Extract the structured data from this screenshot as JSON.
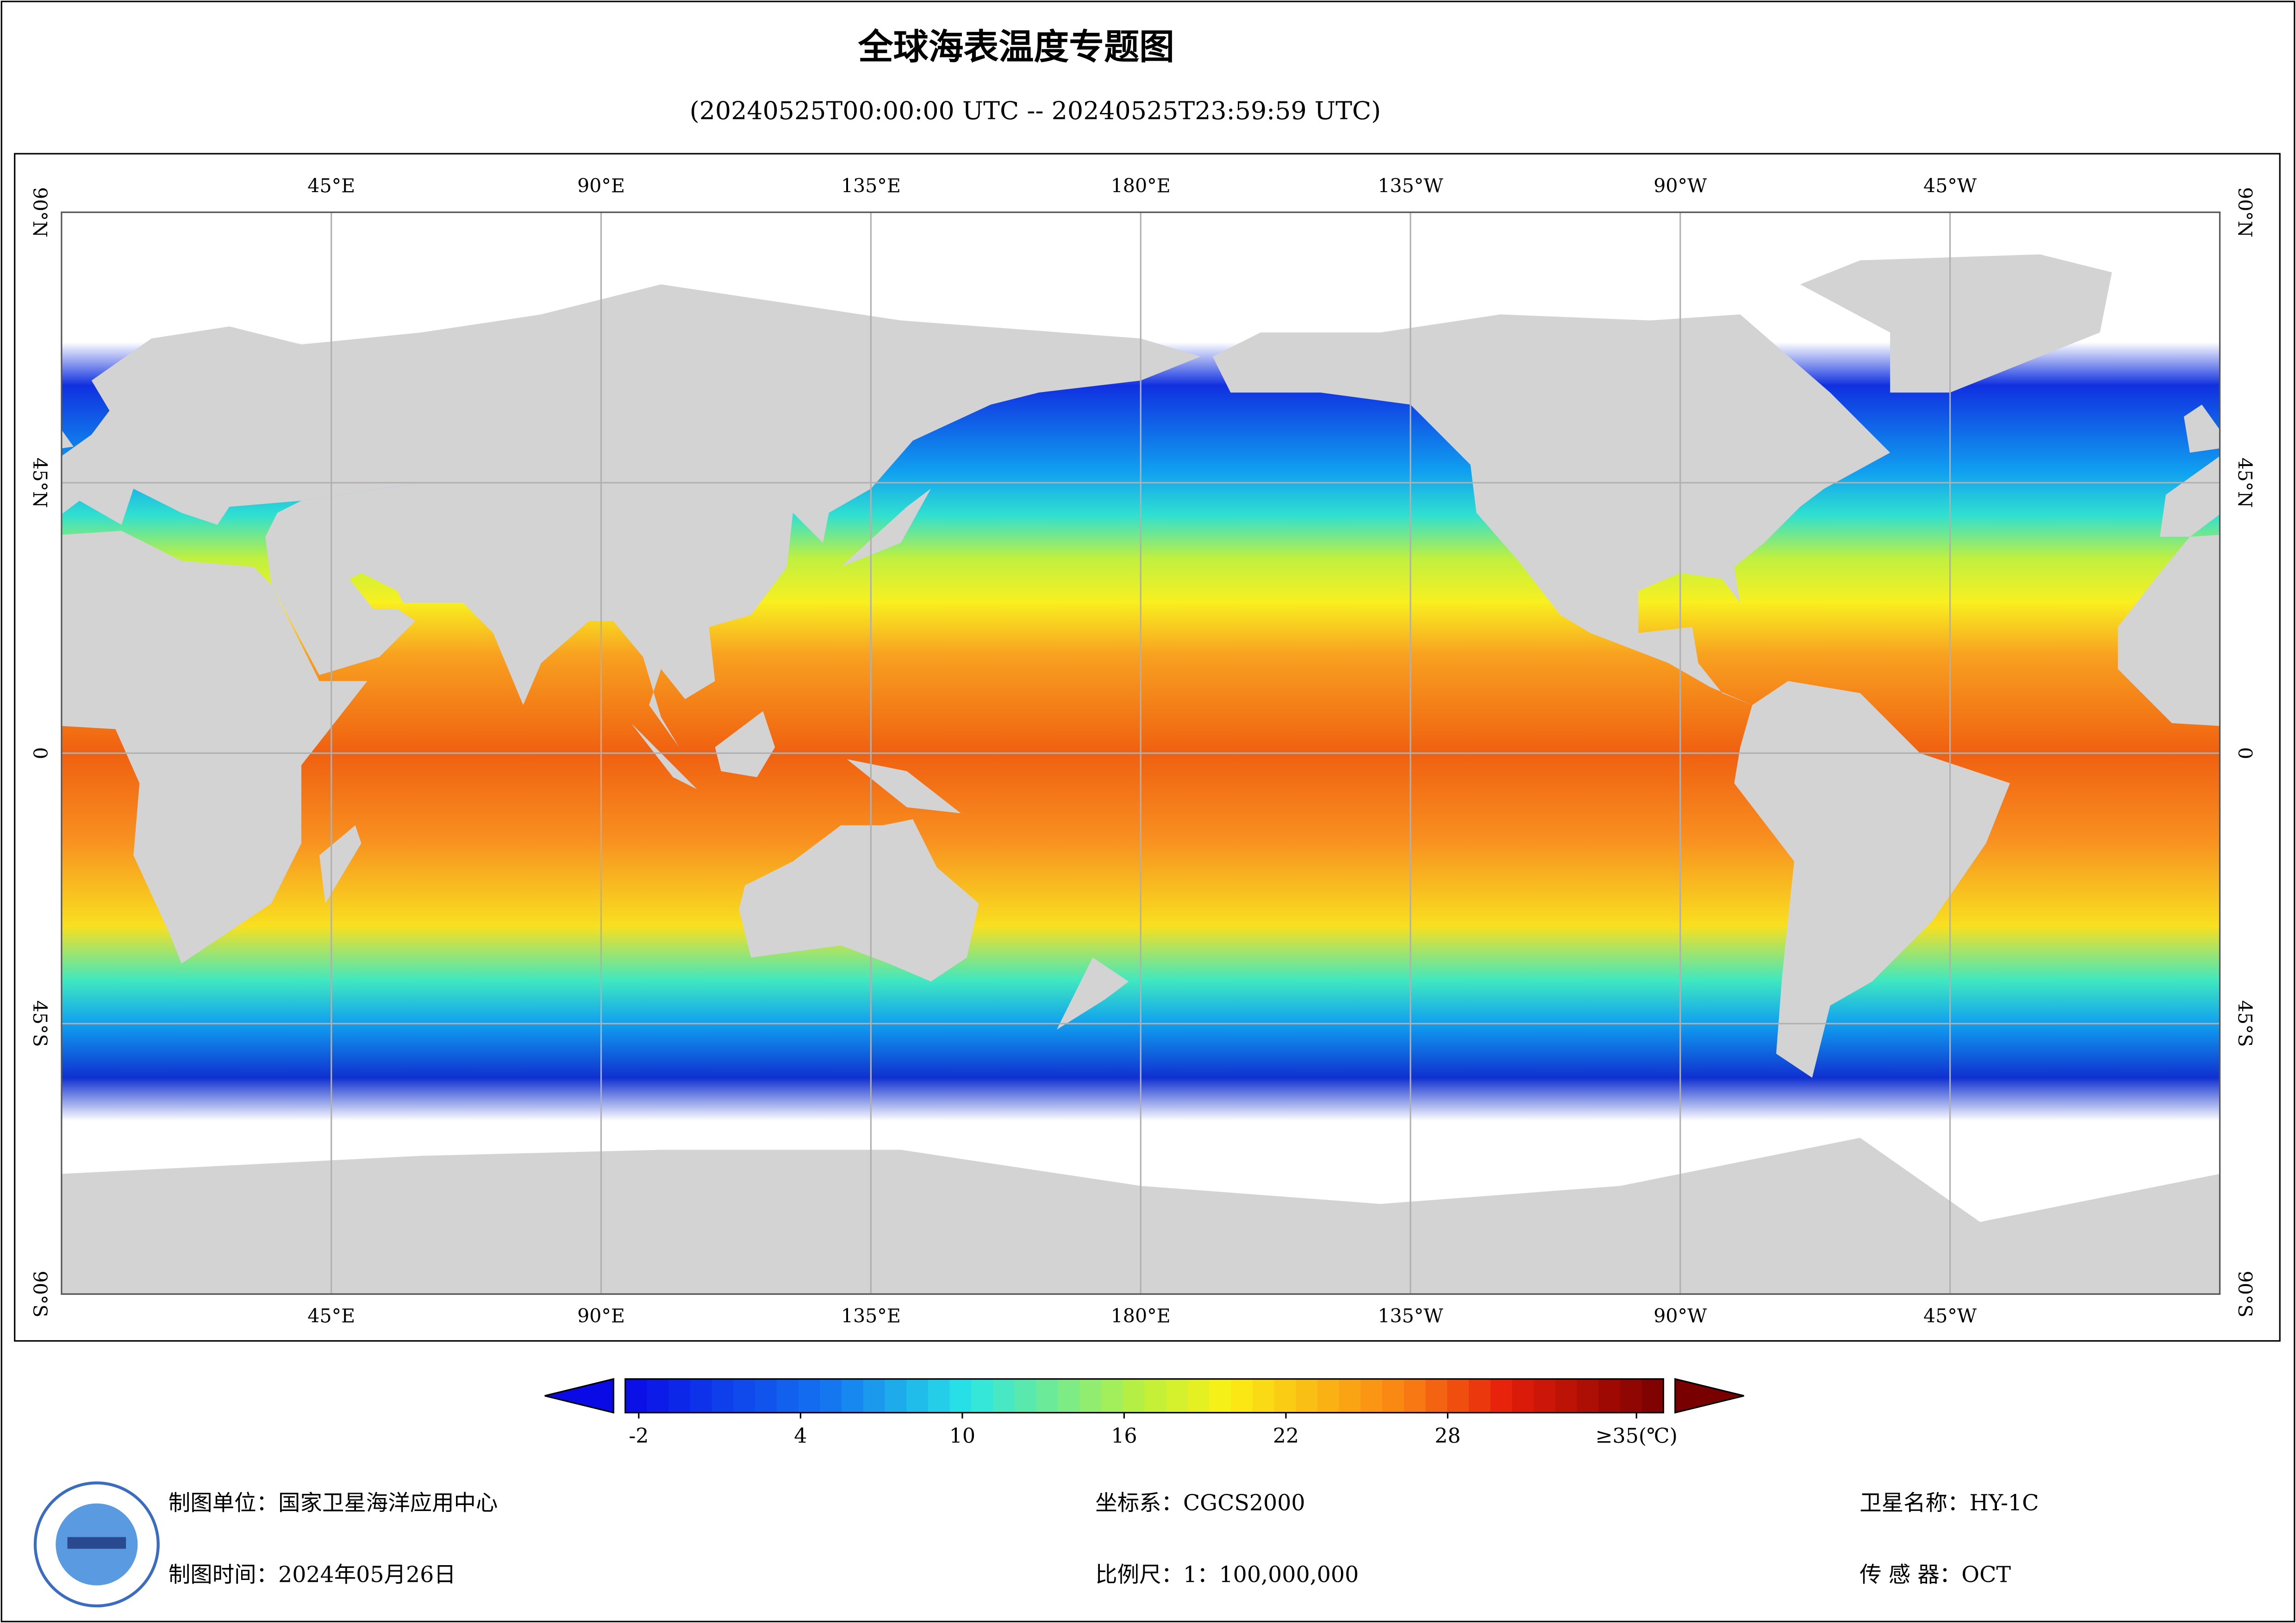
{
  "header": {
    "title": "全球海表温度专题图",
    "subtitle": "(20240525T00:00:00 UTC -- 20240525T23:59:59 UTC)"
  },
  "map": {
    "xlim": [
      0,
      360
    ],
    "ylim": [
      -90,
      90
    ],
    "lon_ticks": [
      {
        "value": 45,
        "label": "45°E"
      },
      {
        "value": 90,
        "label": "90°E"
      },
      {
        "value": 135,
        "label": "135°E"
      },
      {
        "value": 180,
        "label": "180°E"
      },
      {
        "value": 225,
        "label": "135°W"
      },
      {
        "value": 270,
        "label": "90°W"
      },
      {
        "value": 315,
        "label": "45°W"
      }
    ],
    "lat_ticks": [
      {
        "value": 90,
        "label": "90°N"
      },
      {
        "value": 45,
        "label": "45°N"
      },
      0,
      {
        "value": -45,
        "label": "45°S"
      },
      {
        "value": -90,
        "label": "90°S"
      }
    ]
  },
  "colorbar": {
    "lim": [
      -2.5,
      36
    ],
    "ticks": [
      -2,
      4,
      10,
      16,
      22,
      28,
      {
        "value": 35,
        "label": "≥35(℃)"
      }
    ]
  },
  "footer": {
    "unit": "制图单位：国家卫星海洋应用中心",
    "date": "制图时间：2024年05月26日",
    "crs": "坐标系：CGCS2000",
    "scale": "比例尺：1：100,000,000",
    "satellite": "卫星名称：HY-1C",
    "sensor": "传 感 器：OCT"
  }
}
